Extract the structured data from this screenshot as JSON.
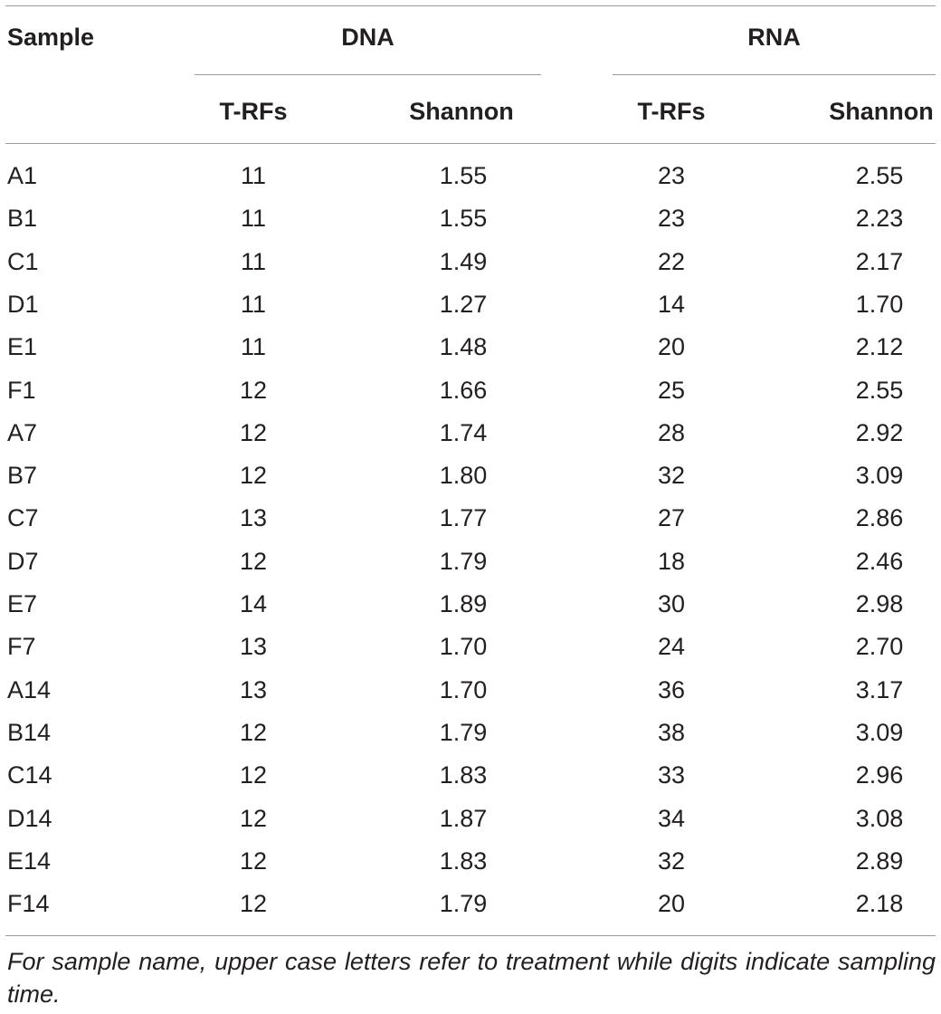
{
  "table": {
    "header": {
      "sample": "Sample",
      "dna": "DNA",
      "rna": "RNA",
      "trfs_dna": "T-RFs",
      "shannon_dna": "Shannon",
      "trfs_rna": "T-RFs",
      "shannon_rna": "Shannon"
    },
    "rows": [
      {
        "sample": "A1",
        "dna_trfs": "11",
        "dna_shannon": "1.55",
        "rna_trfs": "23",
        "rna_shannon": "2.55"
      },
      {
        "sample": "B1",
        "dna_trfs": "11",
        "dna_shannon": "1.55",
        "rna_trfs": "23",
        "rna_shannon": "2.23"
      },
      {
        "sample": "C1",
        "dna_trfs": "11",
        "dna_shannon": "1.49",
        "rna_trfs": "22",
        "rna_shannon": "2.17"
      },
      {
        "sample": "D1",
        "dna_trfs": "11",
        "dna_shannon": "1.27",
        "rna_trfs": "14",
        "rna_shannon": "1.70"
      },
      {
        "sample": "E1",
        "dna_trfs": "11",
        "dna_shannon": "1.48",
        "rna_trfs": "20",
        "rna_shannon": "2.12"
      },
      {
        "sample": "F1",
        "dna_trfs": "12",
        "dna_shannon": "1.66",
        "rna_trfs": "25",
        "rna_shannon": "2.55"
      },
      {
        "sample": "A7",
        "dna_trfs": "12",
        "dna_shannon": "1.74",
        "rna_trfs": "28",
        "rna_shannon": "2.92"
      },
      {
        "sample": "B7",
        "dna_trfs": "12",
        "dna_shannon": "1.80",
        "rna_trfs": "32",
        "rna_shannon": "3.09"
      },
      {
        "sample": "C7",
        "dna_trfs": "13",
        "dna_shannon": "1.77",
        "rna_trfs": "27",
        "rna_shannon": "2.86"
      },
      {
        "sample": "D7",
        "dna_trfs": "12",
        "dna_shannon": "1.79",
        "rna_trfs": "18",
        "rna_shannon": "2.46"
      },
      {
        "sample": "E7",
        "dna_trfs": "14",
        "dna_shannon": "1.89",
        "rna_trfs": "30",
        "rna_shannon": "2.98"
      },
      {
        "sample": "F7",
        "dna_trfs": "13",
        "dna_shannon": "1.70",
        "rna_trfs": "24",
        "rna_shannon": "2.70"
      },
      {
        "sample": "A14",
        "dna_trfs": "13",
        "dna_shannon": "1.70",
        "rna_trfs": "36",
        "rna_shannon": "3.17"
      },
      {
        "sample": "B14",
        "dna_trfs": "12",
        "dna_shannon": "1.79",
        "rna_trfs": "38",
        "rna_shannon": "3.09"
      },
      {
        "sample": "C14",
        "dna_trfs": "12",
        "dna_shannon": "1.83",
        "rna_trfs": "33",
        "rna_shannon": "2.96"
      },
      {
        "sample": "D14",
        "dna_trfs": "12",
        "dna_shannon": "1.87",
        "rna_trfs": "34",
        "rna_shannon": "3.08"
      },
      {
        "sample": "E14",
        "dna_trfs": "12",
        "dna_shannon": "1.83",
        "rna_trfs": "32",
        "rna_shannon": "2.89"
      },
      {
        "sample": "F14",
        "dna_trfs": "12",
        "dna_shannon": "1.79",
        "rna_trfs": "20",
        "rna_shannon": "2.18"
      }
    ],
    "footnote": "For sample name, upper case letters refer to treatment while digits indicate sampling time."
  }
}
